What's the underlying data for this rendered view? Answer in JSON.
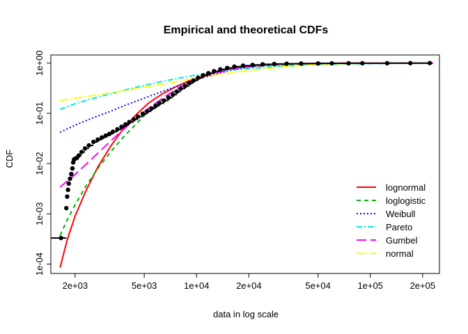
{
  "chart_data": {
    "type": "line",
    "title": "Empirical and theoretical CDFs",
    "xlabel": "data in log scale",
    "ylabel": "CDF",
    "x_scale": "log",
    "y_scale": "log",
    "xlim": [
      1450,
      250000
    ],
    "ylim": [
      6.5e-05,
      1.45
    ],
    "x_ticks": [
      {
        "value": 2000,
        "label": "2e+03"
      },
      {
        "value": 5000,
        "label": "5e+03"
      },
      {
        "value": 10000,
        "label": "1e+04"
      },
      {
        "value": 20000,
        "label": "2e+04"
      },
      {
        "value": 50000,
        "label": "5e+04"
      },
      {
        "value": 100000,
        "label": "1e+05"
      },
      {
        "value": 200000,
        "label": "2e+05"
      }
    ],
    "y_ticks": [
      {
        "value": 0.0001,
        "label": "1e-04"
      },
      {
        "value": 0.001,
        "label": "1e-03"
      },
      {
        "value": 0.01,
        "label": "1e-02"
      },
      {
        "value": 0.1,
        "label": "1e-01"
      },
      {
        "value": 1,
        "label": "1e+00"
      }
    ],
    "grid": false,
    "legend_position": "bottom-right",
    "empirical": {
      "color": "#000000",
      "points": [
        [
          1660,
          0.00033
        ],
        [
          1780,
          0.0013
        ],
        [
          1800,
          0.0022
        ],
        [
          1820,
          0.003
        ],
        [
          1840,
          0.004
        ],
        [
          1870,
          0.005
        ],
        [
          1900,
          0.0062
        ],
        [
          1930,
          0.008
        ],
        [
          1950,
          0.0105
        ],
        [
          1970,
          0.012
        ],
        [
          2000,
          0.0125
        ],
        [
          2050,
          0.013
        ],
        [
          2100,
          0.0145
        ],
        [
          2180,
          0.017
        ],
        [
          2280,
          0.02
        ],
        [
          2400,
          0.023
        ],
        [
          2550,
          0.027
        ],
        [
          2700,
          0.03
        ],
        [
          2850,
          0.033
        ],
        [
          3000,
          0.036
        ],
        [
          3150,
          0.039
        ],
        [
          3300,
          0.043
        ],
        [
          3500,
          0.048
        ],
        [
          3700,
          0.054
        ],
        [
          3900,
          0.06
        ],
        [
          4100,
          0.067
        ],
        [
          4350,
          0.076
        ],
        [
          4600,
          0.086
        ],
        [
          4900,
          0.098
        ],
        [
          5200,
          0.11
        ],
        [
          5500,
          0.125
        ],
        [
          5800,
          0.14
        ],
        [
          6100,
          0.158
        ],
        [
          6500,
          0.18
        ],
        [
          6900,
          0.205
        ],
        [
          7300,
          0.235
        ],
        [
          7700,
          0.27
        ],
        [
          8100,
          0.31
        ],
        [
          8600,
          0.35
        ],
        [
          9100,
          0.4
        ],
        [
          9600,
          0.45
        ],
        [
          10200,
          0.51
        ],
        [
          10900,
          0.57
        ],
        [
          11700,
          0.63
        ],
        [
          12600,
          0.69
        ],
        [
          13700,
          0.75
        ],
        [
          15000,
          0.8
        ],
        [
          16500,
          0.85
        ],
        [
          18500,
          0.89
        ],
        [
          21000,
          0.92
        ],
        [
          24000,
          0.945
        ],
        [
          28000,
          0.96
        ],
        [
          33000,
          0.97
        ],
        [
          40000,
          0.978
        ],
        [
          50000,
          0.984
        ],
        [
          60000,
          0.988
        ],
        [
          75000,
          0.991
        ],
        [
          90000,
          0.993
        ],
        [
          125000,
          0.995
        ],
        [
          170000,
          0.997
        ],
        [
          220000,
          1.0
        ]
      ]
    },
    "series": [
      {
        "name": "lognormal",
        "color": "#ff0000",
        "dash": "solid",
        "x": [
          1640,
          1800,
          2000,
          2300,
          2700,
          3200,
          3800,
          4500,
          5300,
          6300,
          7500,
          9000,
          11000,
          14000,
          18000,
          25000,
          40000,
          80000,
          230000
        ],
        "y": [
          8.5e-05,
          0.0003,
          0.0009,
          0.0028,
          0.0085,
          0.022,
          0.05,
          0.095,
          0.16,
          0.24,
          0.33,
          0.44,
          0.57,
          0.72,
          0.84,
          0.93,
          0.98,
          0.997,
          1.0
        ]
      },
      {
        "name": "loglogistic",
        "color": "#00b400",
        "dash": "6,5",
        "x": [
          1640,
          1800,
          2000,
          2300,
          2700,
          3200,
          3800,
          4500,
          5300,
          6300,
          7500,
          9000,
          11000,
          14000,
          18000,
          25000,
          40000,
          80000,
          230000
        ],
        "y": [
          0.00037,
          0.00075,
          0.0015,
          0.0035,
          0.008,
          0.017,
          0.034,
          0.062,
          0.11,
          0.18,
          0.28,
          0.4,
          0.55,
          0.7,
          0.81,
          0.89,
          0.95,
          0.985,
          0.997
        ]
      },
      {
        "name": "Weibull",
        "color": "#0000ff",
        "dash": "2,3",
        "x": [
          1640,
          2000,
          2500,
          3200,
          4000,
          5000,
          6300,
          8000,
          10000,
          13000,
          17000,
          22000,
          30000,
          50000,
          100000,
          230000
        ],
        "y": [
          0.042,
          0.058,
          0.08,
          0.11,
          0.15,
          0.2,
          0.27,
          0.36,
          0.47,
          0.61,
          0.76,
          0.87,
          0.95,
          0.995,
          1.0,
          1.0
        ]
      },
      {
        "name": "Pareto",
        "color": "#00e5e5",
        "dash": "8,3,2,3",
        "x": [
          1640,
          2000,
          2500,
          3200,
          4000,
          5000,
          6300,
          8000,
          10000,
          13000,
          17000,
          22000,
          30000,
          50000,
          100000,
          230000
        ],
        "y": [
          0.12,
          0.155,
          0.195,
          0.245,
          0.3,
          0.36,
          0.43,
          0.505,
          0.58,
          0.66,
          0.74,
          0.8,
          0.86,
          0.93,
          0.975,
          0.995
        ]
      },
      {
        "name": "Gumbel",
        "color": "#ff00ff",
        "dash": "14,6",
        "x": [
          1640,
          1900,
          2300,
          2800,
          3400,
          4200,
          5200,
          6500,
          8000,
          10000,
          13000,
          17000,
          23000,
          35000,
          70000,
          230000
        ],
        "y": [
          0.0034,
          0.0052,
          0.0095,
          0.018,
          0.034,
          0.065,
          0.12,
          0.21,
          0.33,
          0.48,
          0.64,
          0.78,
          0.89,
          0.97,
          0.997,
          1.0
        ]
      },
      {
        "name": "normal",
        "color": "#ffff00",
        "dash": "12,3,2,3",
        "x": [
          1640,
          2000,
          2500,
          3200,
          4000,
          5000,
          6300,
          8000,
          10000,
          13000,
          17000,
          22000,
          30000,
          50000,
          100000,
          230000
        ],
        "y": [
          0.18,
          0.2,
          0.225,
          0.255,
          0.29,
          0.33,
          0.38,
          0.44,
          0.5,
          0.58,
          0.66,
          0.74,
          0.83,
          0.95,
          0.999,
          1.0
        ]
      }
    ]
  }
}
